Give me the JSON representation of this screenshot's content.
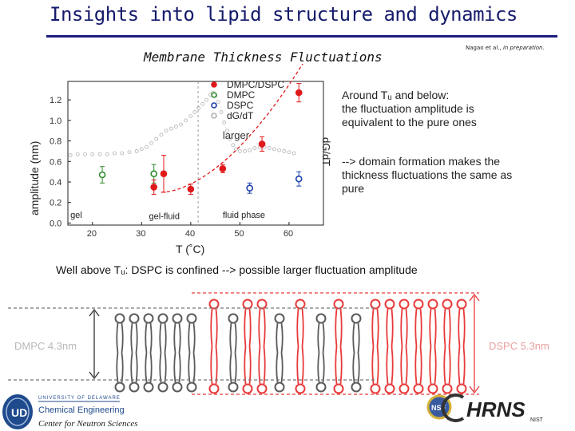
{
  "slide": {
    "title": "Insights into lipid structure and dynamics",
    "subtitle": "Membrane Thickness Fluctuations",
    "citation_plain": "Nagao et al., ",
    "citation_italic": "in preparation.",
    "side_text_1": [
      "Around Tᵤ and below:",
      "the fluctuation amplitude is",
      "equivalent to the pure ones"
    ],
    "side_text_2": [
      "--> domain formation makes the",
      "thickness fluctuations the same as",
      "pure"
    ],
    "bottom_note": "Well above Tᵤ: DSPC is confined --> possible larger fluctuation amplitude",
    "footer_label": "Center for Neutron Sciences"
  },
  "chart_data": {
    "type": "scatter",
    "xlabel": "T (˚C)",
    "ylabel": "amplitude (nm)",
    "y2label": "dG/dT",
    "x_ticks": [
      20,
      30,
      40,
      50,
      60
    ],
    "y_ticks": [
      0.0,
      0.2,
      0.4,
      0.6,
      0.8,
      1.0,
      1.2
    ],
    "xlim": [
      15,
      67
    ],
    "ylim": [
      -0.02,
      1.38
    ],
    "legend_position": "top-right",
    "legend": [
      "DMPC/DSPC",
      "DMPC",
      "DSPC",
      "dG/dT"
    ],
    "annotations": [
      "larger"
    ],
    "region_labels": [
      "gel",
      "gel-fluid",
      "fluid phase"
    ],
    "colors": {
      "DMPC/DSPC": "#e0191b",
      "DMPC": "#2e8b2e",
      "DSPC": "#1a3fa8",
      "dG/dT": "#b0b0b0",
      "fit": "#e0191b"
    },
    "series": [
      {
        "name": "DMPC/DSPC",
        "points": [
          {
            "x": 32.5,
            "y": 0.35,
            "err": 0.07
          },
          {
            "x": 40.0,
            "y": 0.33,
            "err": 0.05
          },
          {
            "x": 34.5,
            "y": 0.48,
            "err": 0.18
          },
          {
            "x": 46.5,
            "y": 0.53,
            "err": 0.04
          },
          {
            "x": 54.5,
            "y": 0.77,
            "err": 0.07
          },
          {
            "x": 62.0,
            "y": 1.27,
            "err": 0.09
          }
        ]
      },
      {
        "name": "DMPC",
        "points": [
          {
            "x": 22.0,
            "y": 0.47,
            "err": 0.08
          },
          {
            "x": 32.5,
            "y": 0.48,
            "err": 0.09
          }
        ]
      },
      {
        "name": "DSPC",
        "points": [
          {
            "x": 52.0,
            "y": 0.34,
            "err": 0.05
          },
          {
            "x": 62.0,
            "y": 0.43,
            "err": 0.07
          }
        ]
      },
      {
        "name": "dG/dT",
        "points": [
          [
            15.5,
            0.66
          ],
          [
            17,
            0.67
          ],
          [
            18.5,
            0.67
          ],
          [
            20,
            0.67
          ],
          [
            21.5,
            0.67
          ],
          [
            23,
            0.67
          ],
          [
            24.5,
            0.68
          ],
          [
            26,
            0.68
          ],
          [
            27.5,
            0.69
          ],
          [
            29,
            0.7
          ],
          [
            30,
            0.72
          ],
          [
            31,
            0.74
          ],
          [
            32,
            0.78
          ],
          [
            33,
            0.82
          ],
          [
            34,
            0.86
          ],
          [
            35,
            0.9
          ],
          [
            36,
            0.92
          ],
          [
            37,
            0.94
          ],
          [
            38,
            0.96
          ],
          [
            39,
            1.0
          ],
          [
            40,
            1.04
          ],
          [
            40.8,
            1.08
          ],
          [
            41.6,
            1.12
          ],
          [
            42.4,
            1.16
          ],
          [
            43.2,
            1.2
          ],
          [
            44,
            1.25
          ],
          [
            44.5,
            1.27
          ],
          [
            45,
            1.24
          ],
          [
            45.6,
            1.18
          ],
          [
            46.2,
            1.08
          ],
          [
            46.8,
            0.98
          ],
          [
            47.4,
            0.9
          ],
          [
            48,
            0.82
          ],
          [
            48.6,
            0.76
          ],
          [
            49.2,
            0.72
          ],
          [
            50,
            0.7
          ],
          [
            51,
            0.7
          ],
          [
            52,
            0.71
          ],
          [
            53,
            0.73
          ],
          [
            54,
            0.74
          ],
          [
            55,
            0.74
          ],
          [
            56,
            0.73
          ],
          [
            57,
            0.72
          ],
          [
            58,
            0.71
          ],
          [
            59,
            0.7
          ],
          [
            60,
            0.69
          ],
          [
            61,
            0.68
          ]
        ]
      }
    ]
  },
  "diagram": {
    "left_label": "DMPC 4.3nm",
    "right_label": "DSPC 5.3nm"
  },
  "logos": {
    "ud_line1": "UNIVERSITY OF DELAWARE",
    "ud_line2": "Chemical Engineering",
    "hrns_text": "HRNS",
    "hrns_sub": "NIST",
    "nsf_text": "NSF"
  }
}
